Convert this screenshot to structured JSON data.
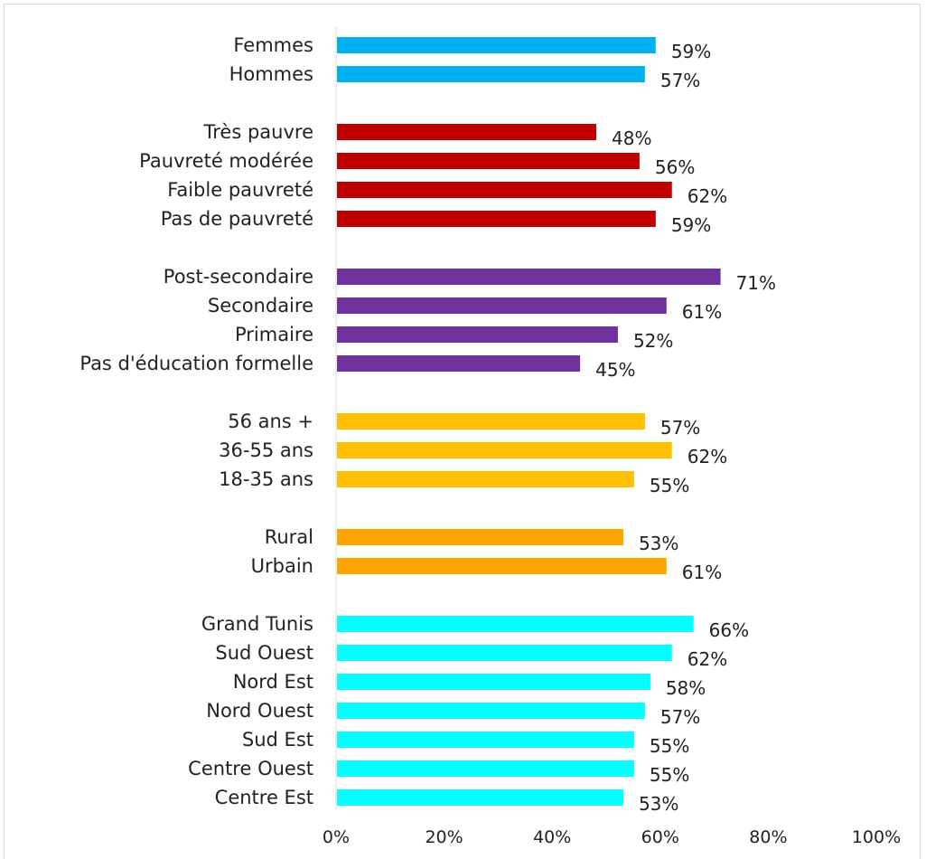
{
  "chart_data": {
    "type": "bar",
    "orientation": "horizontal",
    "xlim": [
      0,
      100
    ],
    "x_tick_labels": [
      "0%",
      "20%",
      "40%",
      "60%",
      "80%",
      "100%"
    ],
    "grid": false,
    "groups": [
      {
        "color": "#00b0f0",
        "items": [
          {
            "label": "Femmes",
            "value": 59,
            "display": "59%"
          },
          {
            "label": "Hommes",
            "value": 57,
            "display": "57%"
          }
        ]
      },
      {
        "color": "#c00000",
        "items": [
          {
            "label": "Très pauvre",
            "value": 48,
            "display": "48%"
          },
          {
            "label": "Pauvreté modérée",
            "value": 56,
            "display": "56%"
          },
          {
            "label": "Faible pauvreté",
            "value": 62,
            "display": "62%"
          },
          {
            "label": "Pas de pauvreté",
            "value": 59,
            "display": "59%"
          }
        ]
      },
      {
        "color": "#7030a0",
        "items": [
          {
            "label": "Post-secondaire",
            "value": 71,
            "display": "71%"
          },
          {
            "label": "Secondaire",
            "value": 61,
            "display": "61%"
          },
          {
            "label": "Primaire",
            "value": 52,
            "display": "52%"
          },
          {
            "label": "Pas d'éducation formelle",
            "value": 45,
            "display": "45%"
          }
        ]
      },
      {
        "color": "#ffc000",
        "items": [
          {
            "label": "56 ans +",
            "value": 57,
            "display": "57%"
          },
          {
            "label": "36-55 ans",
            "value": 62,
            "display": "62%"
          },
          {
            "label": "18-35 ans",
            "value": 55,
            "display": "55%"
          }
        ]
      },
      {
        "color": "#ffa500",
        "items": [
          {
            "label": "Rural",
            "value": 53,
            "display": "53%"
          },
          {
            "label": "Urbain",
            "value": 61,
            "display": "61%"
          }
        ]
      },
      {
        "color": "#00ffff",
        "items": [
          {
            "label": "Grand Tunis",
            "value": 66,
            "display": "66%"
          },
          {
            "label": "Sud Ouest",
            "value": 62,
            "display": "62%"
          },
          {
            "label": "Nord Est",
            "value": 58,
            "display": "58%"
          },
          {
            "label": "Nord Ouest",
            "value": 57,
            "display": "57%"
          },
          {
            "label": "Sud Est",
            "value": 55,
            "display": "55%"
          },
          {
            "label": "Centre Ouest",
            "value": 55,
            "display": "55%"
          },
          {
            "label": "Centre Est",
            "value": 53,
            "display": "53%"
          }
        ]
      }
    ]
  }
}
